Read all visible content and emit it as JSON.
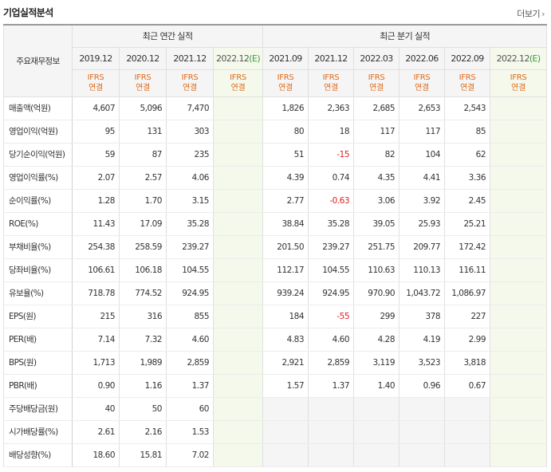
{
  "header": {
    "title": "기업실적분석",
    "more_label": "더보기"
  },
  "table": {
    "rowhead_title": "주요재무정보",
    "group_annual": "최근 연간 실적",
    "group_quarter": "최근 분기 실적",
    "annual_periods": [
      "2019.12",
      "2020.12",
      "2021.12",
      "2022.12"
    ],
    "quarter_periods": [
      "2021.09",
      "2021.12",
      "2022.03",
      "2022.06",
      "2022.09",
      "2022.12"
    ],
    "estimate_mark": "(E)",
    "std_top": "IFRS",
    "std_bottom": "연결",
    "rows": [
      {
        "label": "매출액(억원)",
        "annual": [
          "4,607",
          "5,096",
          "7,470",
          ""
        ],
        "quarter": [
          "1,826",
          "2,363",
          "2,685",
          "2,653",
          "2,543",
          ""
        ]
      },
      {
        "label": "영업이익(억원)",
        "annual": [
          "95",
          "131",
          "303",
          ""
        ],
        "quarter": [
          "80",
          "18",
          "117",
          "117",
          "85",
          ""
        ]
      },
      {
        "label": "당기순이익(억원)",
        "annual": [
          "59",
          "87",
          "235",
          ""
        ],
        "quarter": [
          "51",
          "-15",
          "82",
          "104",
          "62",
          ""
        ]
      },
      {
        "label": "영업이익률(%)",
        "annual": [
          "2.07",
          "2.57",
          "4.06",
          ""
        ],
        "quarter": [
          "4.39",
          "0.74",
          "4.35",
          "4.41",
          "3.36",
          ""
        ]
      },
      {
        "label": "순이익률(%)",
        "annual": [
          "1.28",
          "1.70",
          "3.15",
          ""
        ],
        "quarter": [
          "2.77",
          "-0.63",
          "3.06",
          "3.92",
          "2.45",
          ""
        ]
      },
      {
        "label": "ROE(%)",
        "annual": [
          "11.43",
          "17.09",
          "35.28",
          ""
        ],
        "quarter": [
          "38.84",
          "35.28",
          "39.05",
          "25.93",
          "25.21",
          ""
        ]
      },
      {
        "label": "부채비율(%)",
        "annual": [
          "254.38",
          "258.59",
          "239.27",
          ""
        ],
        "quarter": [
          "201.50",
          "239.27",
          "251.75",
          "209.77",
          "172.42",
          ""
        ]
      },
      {
        "label": "당좌비율(%)",
        "annual": [
          "106.61",
          "106.18",
          "104.55",
          ""
        ],
        "quarter": [
          "112.17",
          "104.55",
          "110.63",
          "110.13",
          "116.11",
          ""
        ]
      },
      {
        "label": "유보율(%)",
        "annual": [
          "718.78",
          "774.52",
          "924.95",
          ""
        ],
        "quarter": [
          "939.24",
          "924.95",
          "970.90",
          "1,043.72",
          "1,086.97",
          ""
        ]
      },
      {
        "label": "EPS(원)",
        "annual": [
          "215",
          "316",
          "855",
          ""
        ],
        "quarter": [
          "184",
          "-55",
          "299",
          "378",
          "227",
          ""
        ]
      },
      {
        "label": "PER(배)",
        "annual": [
          "7.14",
          "7.32",
          "4.60",
          ""
        ],
        "quarter": [
          "4.83",
          "4.60",
          "4.28",
          "4.19",
          "2.99",
          ""
        ]
      },
      {
        "label": "BPS(원)",
        "annual": [
          "1,713",
          "1,989",
          "2,859",
          ""
        ],
        "quarter": [
          "2,921",
          "2,859",
          "3,119",
          "3,523",
          "3,818",
          ""
        ]
      },
      {
        "label": "PBR(배)",
        "annual": [
          "0.90",
          "1.16",
          "1.37",
          ""
        ],
        "quarter": [
          "1.57",
          "1.37",
          "1.40",
          "0.96",
          "0.67",
          ""
        ]
      },
      {
        "label": "주당배당금(원)",
        "annual": [
          "40",
          "50",
          "60",
          ""
        ],
        "quarter": [
          "",
          "",
          "",
          "",
          "",
          ""
        ]
      },
      {
        "label": "시가배당률(%)",
        "annual": [
          "2.61",
          "2.16",
          "1.53",
          ""
        ],
        "quarter": [
          "",
          "",
          "",
          "",
          "",
          ""
        ]
      },
      {
        "label": "배당성향(%)",
        "annual": [
          "18.60",
          "15.81",
          "7.02",
          ""
        ],
        "quarter": [
          "",
          "",
          "",
          "",
          "",
          ""
        ]
      }
    ]
  },
  "colors": {
    "negative": "#e02020",
    "standard_label": "#e06a1a",
    "estimate_bg": "#f4f9ec",
    "estimate_mark": "#3b9b3b"
  }
}
